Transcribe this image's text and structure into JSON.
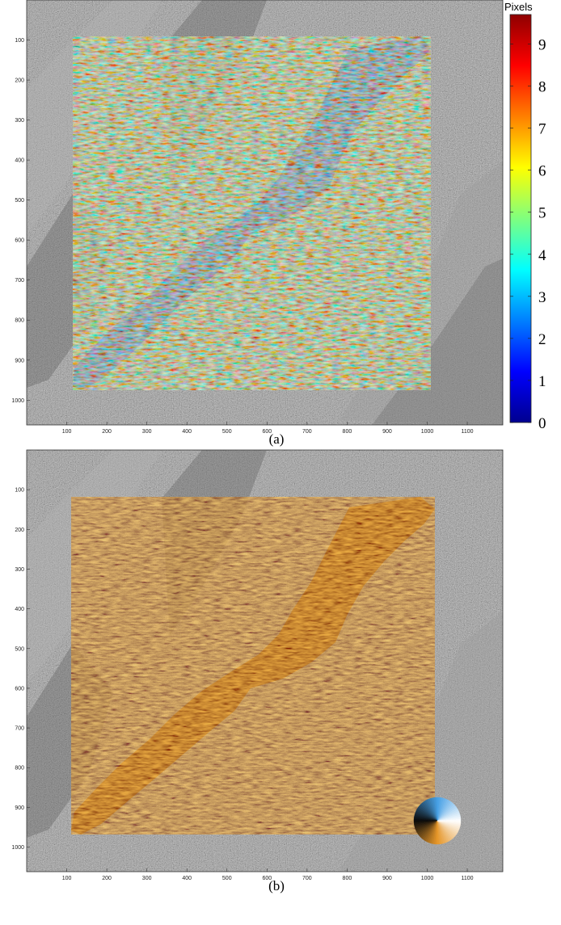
{
  "figure": {
    "panels": [
      {
        "id": "a",
        "caption": "(a)",
        "x_ticks": [
          "100",
          "200",
          "300",
          "400",
          "500",
          "600",
          "700",
          "800",
          "900",
          "1000",
          "1100"
        ],
        "y_ticks": [
          "100",
          "200",
          "300",
          "400",
          "500",
          "600",
          "700",
          "800",
          "900",
          "1000"
        ],
        "colorbar": {
          "title": "Pixels",
          "ticks": [
            "9",
            "8",
            "7",
            "6",
            "5",
            "4",
            "3",
            "2",
            "1",
            "0"
          ],
          "range": [
            0,
            9.7
          ],
          "colormap": "jet"
        }
      },
      {
        "id": "b",
        "caption": "(b)",
        "x_ticks": [
          "100",
          "200",
          "300",
          "400",
          "500",
          "600",
          "700",
          "800",
          "900",
          "1000",
          "1100"
        ],
        "y_ticks": [
          "100",
          "200",
          "300",
          "400",
          "500",
          "600",
          "700",
          "800",
          "900",
          "1000"
        ],
        "direction_wheel": "hsv-direction-wheel"
      }
    ],
    "colors": {
      "terrain": "#8a8a8a",
      "glacier_base_a": "#1f3fe0",
      "glacier_base_b": "#b06a12",
      "jet_low": "#00008f",
      "jet_high": "#8f0000"
    }
  }
}
